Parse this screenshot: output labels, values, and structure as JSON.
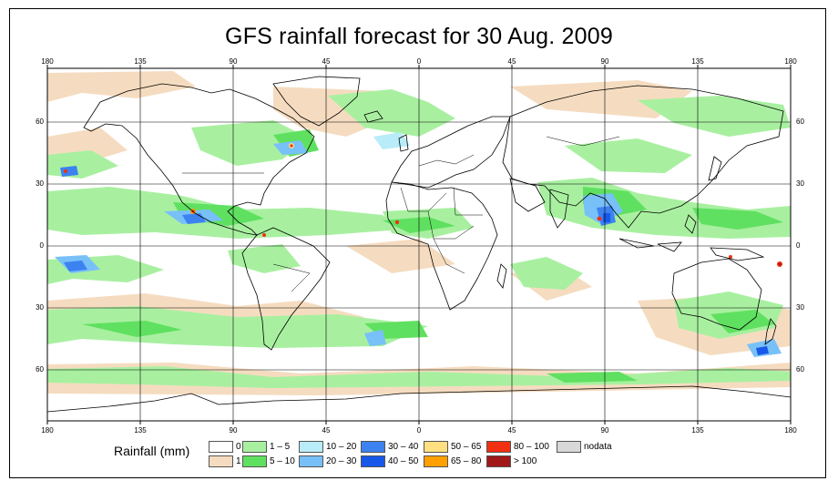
{
  "title": "GFS rainfall forecast for 30 Aug. 2009",
  "map": {
    "projection": "Plate Carree (equirectangular), world",
    "top_axis_ticks": [
      "180",
      "135",
      "90",
      "45",
      "0",
      "45",
      "90",
      "135",
      "180"
    ],
    "bottom_axis_ticks": [
      "180",
      "135",
      "90",
      "45",
      "0",
      "45",
      "90",
      "135",
      "180"
    ],
    "left_axis_ticks": [
      "60",
      "30",
      "0",
      "30",
      "60"
    ],
    "right_axis_ticks": [
      "60",
      "30",
      "0",
      "30",
      "60"
    ],
    "lon_grid_values": [
      -180,
      -135,
      -90,
      -45,
      0,
      45,
      90,
      135,
      180
    ],
    "lat_grid_values": [
      60,
      30,
      0,
      -30,
      -60
    ],
    "lat_range": [
      -85,
      85
    ],
    "lon_range": [
      -180,
      180
    ]
  },
  "legend": {
    "title": "Rainfall (mm)",
    "items": [
      {
        "label": "0",
        "color": "#ffffff"
      },
      {
        "label": "1",
        "color": "#f5dcc0"
      },
      {
        "label": "1 – 5",
        "color": "#a8f0a0"
      },
      {
        "label": "5 – 10",
        "color": "#60e060"
      },
      {
        "label": "10 – 20",
        "color": "#b8ecf8"
      },
      {
        "label": "20 – 30",
        "color": "#78c0f8"
      },
      {
        "label": "30 – 40",
        "color": "#3c82f0"
      },
      {
        "label": "40 – 50",
        "color": "#1858e8"
      },
      {
        "label": "50 – 65",
        "color": "#ffe080"
      },
      {
        "label": "65 – 80",
        "color": "#ffa000"
      },
      {
        "label": "80 – 100",
        "color": "#f03010"
      },
      {
        "label": "> 100",
        "color": "#a01818"
      },
      {
        "label": "nodata",
        "color": "#d8d8d8"
      }
    ]
  },
  "colors": {
    "coastline": "#000000",
    "gridline": "#000000",
    "frame": "#000000"
  }
}
